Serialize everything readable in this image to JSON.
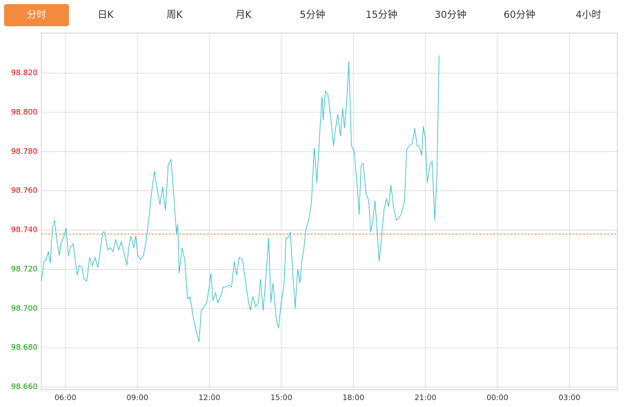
{
  "tabs": [
    "分时",
    "日K",
    "周K",
    "月K",
    "5分钟",
    "15分钟",
    "30分钟",
    "60分钟",
    "4小时"
  ],
  "active_tab": 0,
  "chart_data": {
    "type": "line",
    "color": "#3bbfca",
    "baseline": 98.738,
    "baseline_color": "#e07a26",
    "up_color": "#e00000",
    "down_color": "#009900",
    "grid": true,
    "xlim": [
      5,
      29
    ],
    "xticks": [
      {
        "value": 6,
        "label": "06:00"
      },
      {
        "value": 9,
        "label": "09:00"
      },
      {
        "value": 12,
        "label": "12:00"
      },
      {
        "value": 15,
        "label": "15:00"
      },
      {
        "value": 18,
        "label": "18:00"
      },
      {
        "value": 21,
        "label": "21:00"
      },
      {
        "value": 24,
        "label": "00:00"
      },
      {
        "value": 27,
        "label": "03:00"
      }
    ],
    "ylim": [
      98.6586,
      98.8404
    ],
    "yticks": [
      {
        "value": 98.66,
        "label": "98.660"
      },
      {
        "value": 98.68,
        "label": "98.680"
      },
      {
        "value": 98.7,
        "label": "98.700"
      },
      {
        "value": 98.72,
        "label": "98.720"
      },
      {
        "value": 98.74,
        "label": "98.740"
      },
      {
        "value": 98.76,
        "label": "98.760"
      },
      {
        "value": 98.78,
        "label": "98.780"
      },
      {
        "value": 98.8,
        "label": "98.800"
      },
      {
        "value": 98.82,
        "label": "98.820"
      }
    ],
    "x": [
      5.0,
      5.11,
      5.2,
      5.29,
      5.37,
      5.46,
      5.55,
      5.63,
      5.75,
      5.83,
      5.92,
      6.03,
      6.12,
      6.21,
      6.32,
      6.41,
      6.49,
      6.58,
      6.69,
      6.78,
      6.89,
      7.01,
      7.12,
      7.24,
      7.35,
      7.47,
      7.56,
      7.64,
      7.76,
      7.87,
      7.99,
      8.1,
      8.22,
      8.33,
      8.45,
      8.56,
      8.65,
      8.73,
      8.85,
      8.93,
      9.02,
      9.13,
      9.25,
      9.36,
      9.48,
      9.59,
      9.71,
      9.82,
      9.94,
      10.05,
      10.17,
      10.28,
      10.4,
      10.51,
      10.63,
      10.68,
      10.74,
      10.86,
      10.97,
      11.09,
      11.2,
      11.32,
      11.46,
      11.57,
      11.66,
      11.78,
      11.89,
      11.98,
      12.06,
      12.15,
      12.26,
      12.35,
      12.46,
      12.58,
      12.69,
      12.81,
      12.92,
      13.04,
      13.13,
      13.24,
      13.38,
      13.47,
      13.61,
      13.7,
      13.81,
      13.93,
      14.04,
      14.13,
      14.24,
      14.36,
      14.47,
      14.56,
      14.65,
      14.79,
      14.88,
      14.99,
      15.11,
      15.19,
      15.28,
      15.37,
      15.45,
      15.57,
      15.68,
      15.77,
      15.85,
      15.94,
      16.03,
      16.14,
      16.25,
      16.37,
      16.48,
      16.6,
      16.69,
      16.74,
      16.83,
      16.94,
      17.06,
      17.17,
      17.26,
      17.35,
      17.46,
      17.55,
      17.63,
      17.72,
      17.81,
      17.92,
      18.03,
      18.15,
      18.24,
      18.32,
      18.41,
      18.52,
      18.64,
      18.72,
      18.81,
      18.9,
      19.01,
      19.07,
      19.18,
      19.27,
      19.38,
      19.47,
      19.56,
      19.67,
      19.79,
      19.87,
      19.99,
      20.13,
      20.22,
      20.33,
      20.45,
      20.56,
      20.65,
      20.73,
      20.85,
      20.91,
      20.99,
      21.08,
      21.19,
      21.28,
      21.39,
      21.48,
      21.57
    ],
    "values": [
      98.714,
      98.724,
      98.725,
      98.729,
      98.723,
      98.741,
      98.745,
      98.736,
      98.727,
      98.734,
      98.736,
      98.741,
      98.727,
      98.731,
      98.733,
      98.725,
      98.717,
      98.722,
      98.721,
      98.715,
      98.714,
      98.726,
      98.722,
      98.726,
      98.721,
      98.731,
      98.739,
      98.739,
      98.73,
      98.731,
      98.729,
      98.735,
      98.73,
      98.734,
      98.728,
      98.722,
      98.732,
      98.737,
      98.731,
      98.737,
      98.727,
      98.725,
      98.727,
      98.734,
      98.746,
      98.759,
      98.77,
      98.761,
      98.753,
      98.762,
      98.75,
      98.773,
      98.776,
      98.759,
      98.738,
      98.743,
      98.718,
      98.731,
      98.725,
      98.705,
      98.706,
      98.696,
      98.688,
      98.683,
      98.699,
      98.701,
      98.703,
      98.71,
      98.718,
      98.704,
      98.708,
      98.703,
      98.706,
      98.711,
      98.711,
      98.712,
      98.711,
      98.724,
      98.717,
      98.726,
      98.725,
      98.717,
      98.705,
      98.699,
      98.706,
      98.701,
      98.703,
      98.715,
      98.699,
      98.717,
      98.736,
      98.703,
      98.713,
      98.694,
      98.69,
      98.703,
      98.712,
      98.736,
      98.736,
      98.739,
      98.723,
      98.7,
      98.72,
      98.713,
      98.724,
      98.731,
      98.741,
      98.745,
      98.754,
      98.782,
      98.764,
      98.79,
      98.808,
      98.796,
      98.811,
      98.809,
      98.797,
      98.783,
      98.792,
      98.799,
      98.788,
      98.802,
      98.792,
      98.805,
      98.826,
      98.783,
      98.78,
      98.764,
      98.748,
      98.773,
      98.774,
      98.759,
      98.755,
      98.739,
      98.745,
      98.755,
      98.736,
      98.724,
      98.737,
      98.75,
      98.756,
      98.752,
      98.763,
      98.752,
      98.745,
      98.746,
      98.748,
      98.755,
      98.781,
      98.783,
      98.784,
      98.792,
      98.783,
      98.783,
      98.778,
      98.793,
      98.787,
      98.764,
      98.773,
      98.775,
      98.745,
      98.767,
      98.829
    ]
  }
}
